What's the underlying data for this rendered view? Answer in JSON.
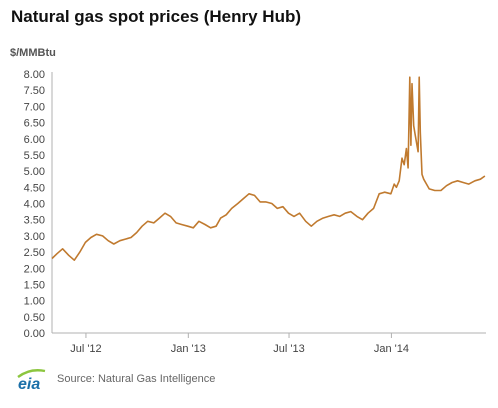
{
  "chart_data": {
    "type": "line",
    "title": "Natural gas spot prices (Henry Hub)",
    "ylabel": "$/MMBtu",
    "xlabel": "",
    "ylim": [
      0,
      8
    ],
    "xlim": [
      "2012-05-01",
      "2014-06-20"
    ],
    "grid": false,
    "yticks": [
      "0.00",
      "0.50",
      "1.00",
      "1.50",
      "2.00",
      "2.50",
      "3.00",
      "3.50",
      "4.00",
      "4.50",
      "5.00",
      "5.50",
      "6.00",
      "6.50",
      "7.00",
      "7.50",
      "8.00"
    ],
    "xticks": [
      {
        "label": "Jul '12",
        "date": "2012-07-01"
      },
      {
        "label": "Jan '13",
        "date": "2013-01-01"
      },
      {
        "label": "Jul '13",
        "date": "2013-07-01"
      },
      {
        "label": "Jan '14",
        "date": "2014-01-01"
      }
    ],
    "series": [
      {
        "color": "#c07a2f",
        "points": [
          [
            "2012-05-01",
            2.3
          ],
          [
            "2012-05-10",
            2.45
          ],
          [
            "2012-05-20",
            2.6
          ],
          [
            "2012-05-31",
            2.4
          ],
          [
            "2012-06-10",
            2.25
          ],
          [
            "2012-06-20",
            2.5
          ],
          [
            "2012-06-30",
            2.8
          ],
          [
            "2012-07-10",
            2.95
          ],
          [
            "2012-07-20",
            3.05
          ],
          [
            "2012-07-31",
            3.0
          ],
          [
            "2012-08-10",
            2.85
          ],
          [
            "2012-08-20",
            2.75
          ],
          [
            "2012-08-31",
            2.85
          ],
          [
            "2012-09-10",
            2.9
          ],
          [
            "2012-09-20",
            2.95
          ],
          [
            "2012-09-30",
            3.1
          ],
          [
            "2012-10-10",
            3.3
          ],
          [
            "2012-10-20",
            3.45
          ],
          [
            "2012-10-31",
            3.4
          ],
          [
            "2012-11-10",
            3.55
          ],
          [
            "2012-11-20",
            3.7
          ],
          [
            "2012-11-30",
            3.6
          ],
          [
            "2012-12-10",
            3.4
          ],
          [
            "2012-12-20",
            3.35
          ],
          [
            "2012-12-31",
            3.3
          ],
          [
            "2013-01-10",
            3.25
          ],
          [
            "2013-01-20",
            3.45
          ],
          [
            "2013-01-31",
            3.35
          ],
          [
            "2013-02-10",
            3.25
          ],
          [
            "2013-02-20",
            3.3
          ],
          [
            "2013-02-28",
            3.55
          ],
          [
            "2013-03-10",
            3.65
          ],
          [
            "2013-03-20",
            3.85
          ],
          [
            "2013-03-31",
            4.0
          ],
          [
            "2013-04-10",
            4.15
          ],
          [
            "2013-04-20",
            4.3
          ],
          [
            "2013-04-30",
            4.25
          ],
          [
            "2013-05-10",
            4.05
          ],
          [
            "2013-05-20",
            4.05
          ],
          [
            "2013-05-31",
            4.0
          ],
          [
            "2013-06-10",
            3.85
          ],
          [
            "2013-06-20",
            3.9
          ],
          [
            "2013-06-30",
            3.7
          ],
          [
            "2013-07-10",
            3.6
          ],
          [
            "2013-07-20",
            3.7
          ],
          [
            "2013-07-31",
            3.45
          ],
          [
            "2013-08-10",
            3.3
          ],
          [
            "2013-08-20",
            3.45
          ],
          [
            "2013-08-31",
            3.55
          ],
          [
            "2013-09-10",
            3.6
          ],
          [
            "2013-09-20",
            3.65
          ],
          [
            "2013-09-30",
            3.6
          ],
          [
            "2013-10-10",
            3.7
          ],
          [
            "2013-10-20",
            3.75
          ],
          [
            "2013-10-31",
            3.6
          ],
          [
            "2013-11-10",
            3.5
          ],
          [
            "2013-11-20",
            3.7
          ],
          [
            "2013-11-30",
            3.85
          ],
          [
            "2013-12-10",
            4.3
          ],
          [
            "2013-12-20",
            4.35
          ],
          [
            "2013-12-31",
            4.3
          ],
          [
            "2014-01-06",
            4.6
          ],
          [
            "2014-01-10",
            4.5
          ],
          [
            "2014-01-15",
            4.7
          ],
          [
            "2014-01-20",
            5.4
          ],
          [
            "2014-01-24",
            5.2
          ],
          [
            "2014-01-28",
            5.7
          ],
          [
            "2014-01-31",
            5.1
          ],
          [
            "2014-02-03",
            7.9
          ],
          [
            "2014-02-05",
            5.8
          ],
          [
            "2014-02-07",
            7.7
          ],
          [
            "2014-02-10",
            6.4
          ],
          [
            "2014-02-13",
            6.1
          ],
          [
            "2014-02-18",
            5.6
          ],
          [
            "2014-02-20",
            7.9
          ],
          [
            "2014-02-22",
            6.2
          ],
          [
            "2014-02-25",
            4.9
          ],
          [
            "2014-02-28",
            4.75
          ],
          [
            "2014-03-05",
            4.6
          ],
          [
            "2014-03-10",
            4.45
          ],
          [
            "2014-03-20",
            4.4
          ],
          [
            "2014-03-31",
            4.4
          ],
          [
            "2014-04-10",
            4.55
          ],
          [
            "2014-04-20",
            4.65
          ],
          [
            "2014-04-30",
            4.7
          ],
          [
            "2014-05-10",
            4.65
          ],
          [
            "2014-05-20",
            4.6
          ],
          [
            "2014-05-31",
            4.7
          ],
          [
            "2014-06-10",
            4.75
          ],
          [
            "2014-06-18",
            4.85
          ]
        ]
      }
    ]
  },
  "footer": {
    "source_text": "Source: Natural Gas Intelligence",
    "logo_text": "eia",
    "logo_color": "#1a6fa8",
    "logo_arc_color": "#8cc63f"
  },
  "colors": {
    "axis": "#b0b0b0",
    "line": "#c07a2f"
  }
}
